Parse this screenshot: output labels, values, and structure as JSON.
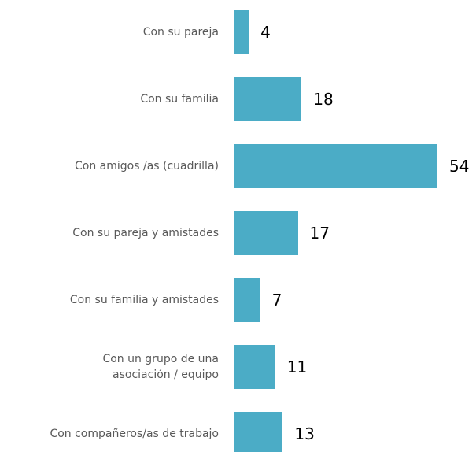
{
  "chart_data": {
    "type": "bar",
    "orientation": "horizontal",
    "categories": [
      "Con su pareja",
      "Con su familia",
      "Con amigos /as (cuadrilla)",
      "Con su pareja y amistades",
      "Con su familia y amistades",
      "Con un grupo de una\nasociación / equipo",
      "Con compañeros/as de trabajo"
    ],
    "values": [
      4,
      18,
      54,
      17,
      7,
      11,
      13
    ],
    "color": "#4bacc6"
  }
}
